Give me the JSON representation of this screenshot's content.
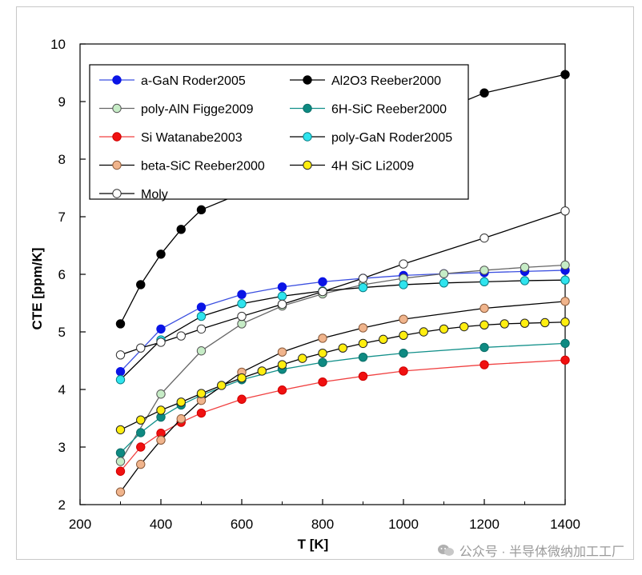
{
  "chart_data": {
    "type": "scatter",
    "title": "",
    "xlabel": "T [K]",
    "ylabel": "CTE [ppm/K]",
    "xlim": [
      200,
      1400
    ],
    "ylim": [
      2,
      10
    ],
    "xticks": [
      "200",
      "400",
      "600",
      "800",
      "1000",
      "1200",
      "1400"
    ],
    "yticks": [
      "2",
      "3",
      "4",
      "5",
      "6",
      "7",
      "8",
      "9",
      "10"
    ],
    "grid": false,
    "legend_position": "top-left",
    "series": [
      {
        "name": "a-GaN Roder2005",
        "line": "#3b4fe0",
        "fill": "#0a14e6",
        "stroke": "#0a14e6",
        "x": [
          300,
          400,
          500,
          600,
          700,
          800,
          900,
          1000,
          1100,
          1200,
          1300,
          1400
        ],
        "y": [
          4.31,
          5.05,
          5.43,
          5.65,
          5.78,
          5.87,
          5.93,
          5.98,
          6.01,
          6.03,
          6.05,
          6.07
        ]
      },
      {
        "name": "Al2O3 Reeber2000",
        "line": "#000000",
        "fill": "#000000",
        "stroke": "#000000",
        "x": [
          300,
          350,
          400,
          450,
          500,
          1200,
          1400
        ],
        "y": [
          5.14,
          5.82,
          6.35,
          6.78,
          7.12,
          9.15,
          9.47
        ]
      },
      {
        "name": "poly-AlN Figge2009",
        "line": "#666666",
        "fill": "#c6ecc6",
        "stroke": "#555555",
        "x": [
          300,
          400,
          500,
          600,
          700,
          800,
          900,
          1000,
          1100,
          1200,
          1300,
          1400
        ],
        "y": [
          2.75,
          3.92,
          4.67,
          5.14,
          5.45,
          5.66,
          5.82,
          5.93,
          6.01,
          6.07,
          6.12,
          6.16
        ]
      },
      {
        "name": "6H-SiC Reeber2000",
        "line": "#12908a",
        "fill": "#0e8a82",
        "stroke": "#0b6f69",
        "x": [
          300,
          350,
          400,
          450,
          500,
          600,
          700,
          800,
          900,
          1000,
          1200,
          1400
        ],
        "y": [
          2.9,
          3.25,
          3.52,
          3.73,
          3.9,
          4.17,
          4.35,
          4.47,
          4.56,
          4.63,
          4.73,
          4.8
        ]
      },
      {
        "name": "Si Watanabe2003",
        "line": "#f04040",
        "fill": "#f01010",
        "stroke": "#d00000",
        "x": [
          300,
          350,
          400,
          450,
          500,
          600,
          700,
          800,
          900,
          1000,
          1200,
          1400
        ],
        "y": [
          2.58,
          3.0,
          3.24,
          3.43,
          3.59,
          3.83,
          3.99,
          4.13,
          4.23,
          4.32,
          4.43,
          4.51
        ]
      },
      {
        "name": "poly-GaN Roder2005",
        "line": "#000000",
        "fill": "#2fe4ee",
        "stroke": "#0a7f86",
        "x": [
          300,
          400,
          500,
          600,
          700,
          800,
          900,
          1000,
          1100,
          1200,
          1300,
          1400
        ],
        "y": [
          4.17,
          4.86,
          5.27,
          5.49,
          5.62,
          5.71,
          5.77,
          5.82,
          5.85,
          5.87,
          5.89,
          5.9
        ]
      },
      {
        "name": "beta-SiC Reeber2000",
        "line": "#000000",
        "fill": "#f0b48c",
        "stroke": "#8a5a3a",
        "x": [
          300,
          350,
          400,
          450,
          500,
          600,
          700,
          800,
          900,
          1000,
          1200,
          1400
        ],
        "y": [
          2.22,
          2.7,
          3.12,
          3.49,
          3.81,
          4.3,
          4.65,
          4.89,
          5.07,
          5.22,
          5.41,
          5.53
        ]
      },
      {
        "name": "4H SiC Li2009",
        "line": "#000000",
        "fill": "#ffee10",
        "stroke": "#222222",
        "x": [
          300,
          350,
          400,
          450,
          500,
          550,
          600,
          650,
          700,
          750,
          800,
          850,
          900,
          950,
          1000,
          1050,
          1100,
          1150,
          1200,
          1250,
          1300,
          1350,
          1400
        ],
        "y": [
          3.3,
          3.47,
          3.64,
          3.78,
          3.93,
          4.07,
          4.2,
          4.32,
          4.43,
          4.54,
          4.63,
          4.72,
          4.8,
          4.87,
          4.94,
          5.0,
          5.05,
          5.09,
          5.12,
          5.14,
          5.15,
          5.16,
          5.17
        ]
      },
      {
        "name": "Moly",
        "line": "#000000",
        "fill": "#ffffff",
        "stroke": "#333333",
        "x": [
          300,
          350,
          400,
          450,
          500,
          600,
          700,
          800,
          900,
          1000,
          1200,
          1400
        ],
        "y": [
          4.6,
          4.72,
          4.82,
          4.93,
          5.05,
          5.27,
          5.48,
          5.7,
          5.93,
          6.18,
          6.63,
          7.1
        ]
      }
    ]
  },
  "watermark": {
    "text": "公众号 · 半导体微纳加工工厂",
    "icon": "wechat-icon"
  }
}
